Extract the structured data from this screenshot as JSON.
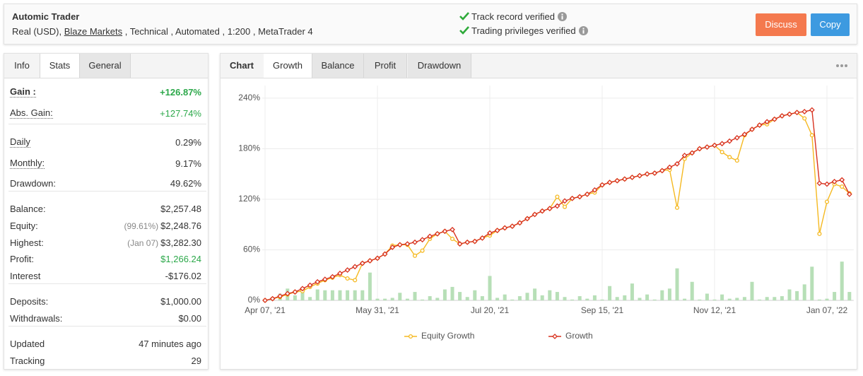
{
  "header": {
    "title": "Automic Trader",
    "account": "Real (USD),",
    "broker": "Blaze Markets",
    "details": ", Technical , Automated , 1:200 , MetaTrader 4",
    "verified": [
      "Track record verified",
      "Trading privileges verified"
    ],
    "buttons": [
      "Discuss",
      "Copy"
    ]
  },
  "stats_panel": {
    "tabs": [
      "Info",
      "Stats",
      "General"
    ],
    "active_tab": 1,
    "groups": [
      [
        {
          "label": "Gain :",
          "value": "+126.87%",
          "bold": true,
          "underline": true,
          "color": "#2ca84a"
        },
        {
          "label": "Abs. Gain:",
          "value": "+127.74%",
          "underline": true,
          "color": "#2ca84a"
        }
      ],
      [
        {
          "label": "Daily",
          "value": "0.29%",
          "underline": true
        },
        {
          "label": "Monthly:",
          "value": "9.17%",
          "underline": true
        },
        {
          "label": "Drawdown:",
          "value": "49.62%"
        }
      ],
      [
        {
          "label": "Balance:",
          "value": "$2,257.48"
        },
        {
          "label": "Equity:",
          "note": "(99.61%)",
          "value": "$2,248.76"
        },
        {
          "label": "Highest:",
          "note": "(Jan 07)",
          "value": "$3,282.30"
        },
        {
          "label": "Profit:",
          "value": "$1,266.24",
          "color": "#2ca84a"
        },
        {
          "label": "Interest",
          "value": "-$176.02"
        }
      ],
      [
        {
          "label": "Deposits:",
          "value": "$1,000.00"
        },
        {
          "label": "Withdrawals:",
          "value": "$0.00"
        }
      ],
      [
        {
          "label": "Updated",
          "value": "47 minutes ago"
        },
        {
          "label": "Tracking",
          "value": "29"
        }
      ]
    ]
  },
  "chart_panel": {
    "tabs": [
      "Chart",
      "Growth",
      "Balance",
      "Profit",
      "Drawdown"
    ],
    "active_tab": 1
  },
  "chart_data": {
    "type": "line",
    "categories": [
      "Apr 07, '21",
      null,
      null,
      null,
      null,
      null,
      null,
      null,
      null,
      null,
      null,
      null,
      null,
      null,
      null,
      "May 31, '21",
      null,
      null,
      null,
      null,
      null,
      null,
      null,
      null,
      null,
      null,
      null,
      null,
      null,
      null,
      "Jul 20, '21",
      null,
      null,
      null,
      null,
      null,
      null,
      null,
      null,
      null,
      null,
      null,
      null,
      null,
      null,
      "Sep 15, '21",
      null,
      null,
      null,
      null,
      null,
      null,
      null,
      null,
      null,
      null,
      null,
      null,
      null,
      null,
      "Nov 12, '21",
      null,
      null,
      null,
      null,
      null,
      null,
      null,
      null,
      null,
      null,
      null,
      null,
      null,
      null,
      "Jan 07, '22",
      null,
      null,
      null
    ],
    "series": [
      {
        "name": "Equity Growth",
        "color": "#f5b921",
        "marker": "circle",
        "values": [
          0,
          2,
          4,
          7,
          10,
          11,
          16,
          20,
          24,
          27,
          30,
          26,
          24,
          44,
          47,
          50,
          55,
          65,
          66,
          66,
          53,
          59,
          73,
          79,
          82,
          73,
          67,
          69,
          70,
          74,
          77,
          83,
          86,
          88,
          92,
          97,
          102,
          106,
          109,
          123,
          111,
          121,
          123,
          126,
          128,
          137,
          140,
          142,
          144,
          146,
          148,
          150,
          151,
          154,
          155,
          110,
          168,
          175,
          180,
          182,
          184,
          176,
          170,
          166,
          196,
          203,
          208,
          209,
          215,
          219,
          221,
          223,
          216,
          196,
          79,
          117,
          138,
          135,
          127
        ]
      },
      {
        "name": "Growth",
        "color": "#d8321f",
        "marker": "diamond",
        "values": [
          0,
          2,
          5,
          8,
          10,
          14,
          18,
          22,
          25,
          28,
          32,
          36,
          40,
          44,
          47,
          50,
          55,
          63,
          66,
          67,
          69,
          72,
          76,
          79,
          82,
          84,
          67,
          69,
          70,
          74,
          80,
          83,
          86,
          88,
          92,
          97,
          102,
          106,
          109,
          112,
          118,
          121,
          123,
          126,
          131,
          137,
          140,
          142,
          144,
          146,
          148,
          150,
          151,
          154,
          158,
          162,
          172,
          175,
          180,
          182,
          184,
          186,
          189,
          193,
          197,
          203,
          208,
          212,
          215,
          219,
          221,
          223,
          224,
          226,
          139,
          138,
          141,
          143,
          126
        ]
      }
    ],
    "bars": {
      "color": "#b7dfb7",
      "values": [
        1,
        3,
        8,
        14,
        6,
        10,
        4,
        13,
        12,
        12,
        12,
        12,
        12,
        12,
        33,
        2,
        2,
        3,
        9,
        2,
        10,
        1,
        5,
        3,
        13,
        16,
        10,
        4,
        12,
        5,
        29,
        3,
        7,
        1,
        5,
        9,
        14,
        6,
        12,
        10,
        4,
        1,
        5,
        2,
        6,
        1,
        17,
        4,
        6,
        20,
        3,
        7,
        1,
        12,
        14,
        38,
        2,
        22,
        1,
        8,
        1,
        7,
        2,
        3,
        4,
        22,
        1,
        4,
        4,
        5,
        13,
        11,
        19,
        40,
        1,
        2,
        10,
        46,
        10
      ]
    },
    "ylim": [
      0,
      255
    ],
    "yticks": [
      {
        "value": 0,
        "label": "0%"
      },
      {
        "value": 60,
        "label": "60%"
      },
      {
        "value": 120,
        "label": "120%"
      },
      {
        "value": 180,
        "label": "180%"
      },
      {
        "value": 240,
        "label": "240%"
      }
    ],
    "grid": true,
    "legend": "bottom"
  }
}
